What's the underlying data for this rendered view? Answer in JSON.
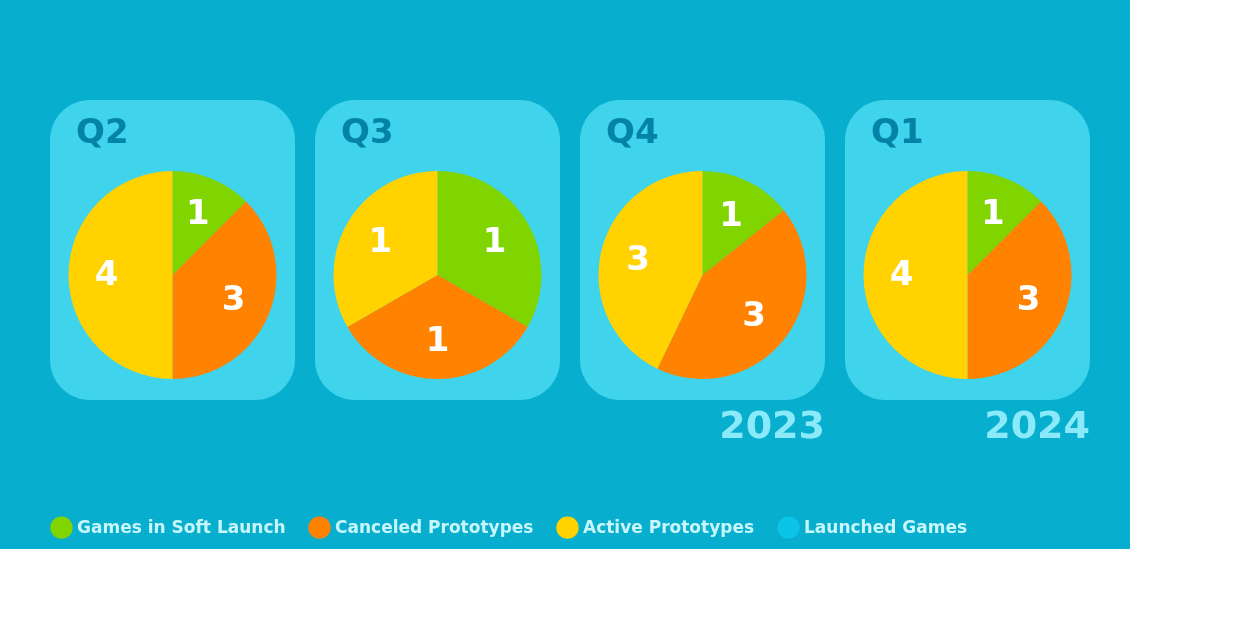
{
  "chart_data": {
    "type": "pie",
    "categories": [
      "Games in Soft Launch",
      "Canceled Prototypes",
      "Active Prototypes",
      "Launched Games"
    ],
    "colors": [
      "#80d400",
      "#ff8200",
      "#ffd200",
      "#0cc3e8"
    ],
    "data_labels": true,
    "legend": "bottom",
    "series": [
      {
        "name": "Q2",
        "values": [
          1,
          3,
          4,
          0
        ]
      },
      {
        "name": "Q3",
        "values": [
          1,
          1,
          1,
          0
        ]
      },
      {
        "name": "Q4",
        "values": [
          1,
          3,
          3,
          0
        ]
      },
      {
        "name": "Q1",
        "values": [
          1,
          3,
          4,
          0
        ]
      }
    ],
    "annotations": [
      "2023",
      "2024"
    ]
  }
}
